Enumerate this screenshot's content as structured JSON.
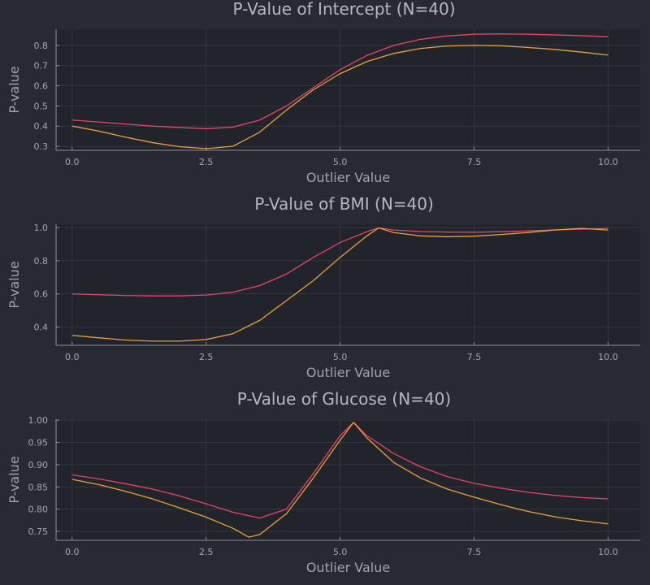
{
  "chart_data": [
    {
      "type": "line",
      "title": "P-Value of Intercept (N=40)",
      "xlabel": "Outlier Value",
      "ylabel": "P-value",
      "xlim": [
        -0.3,
        10.6
      ],
      "ylim": [
        0.28,
        0.88
      ],
      "xticks": [
        0,
        2.5,
        5,
        7.5,
        10
      ],
      "xtick_labels": [
        "0.0",
        "2.5",
        "5.0",
        "7.5",
        "10.0"
      ],
      "yticks": [
        0.3,
        0.4,
        0.5,
        0.6,
        0.7,
        0.8
      ],
      "ytick_labels": [
        "0.3",
        "0.4",
        "0.5",
        "0.6",
        "0.7",
        "0.8"
      ],
      "grid": true,
      "series": [
        {
          "color": "#e8436b",
          "x": [
            0,
            0.5,
            1,
            1.5,
            2,
            2.5,
            3,
            3.5,
            4,
            4.5,
            5,
            5.5,
            6,
            6.5,
            7,
            7.5,
            8,
            8.5,
            9,
            9.5,
            10
          ],
          "y": [
            0.43,
            0.42,
            0.41,
            0.4,
            0.393,
            0.387,
            0.395,
            0.43,
            0.5,
            0.59,
            0.68,
            0.75,
            0.8,
            0.83,
            0.847,
            0.855,
            0.857,
            0.855,
            0.852,
            0.848,
            0.843
          ]
        },
        {
          "color": "#e9a23b",
          "x": [
            0,
            0.5,
            1,
            1.5,
            2,
            2.5,
            3,
            3.5,
            4,
            4.5,
            5,
            5.5,
            6,
            6.5,
            7,
            7.5,
            8,
            8.5,
            9,
            9.5,
            10
          ],
          "y": [
            0.4,
            0.375,
            0.345,
            0.318,
            0.298,
            0.288,
            0.3,
            0.37,
            0.48,
            0.58,
            0.66,
            0.72,
            0.76,
            0.785,
            0.797,
            0.8,
            0.798,
            0.79,
            0.78,
            0.767,
            0.752
          ]
        }
      ]
    },
    {
      "type": "line",
      "title": "P-Value of BMI (N=40)",
      "xlabel": "Outlier Value",
      "ylabel": "P-value",
      "xlim": [
        -0.3,
        10.6
      ],
      "ylim": [
        0.29,
        1.02
      ],
      "xticks": [
        0,
        2.5,
        5,
        7.5,
        10
      ],
      "xtick_labels": [
        "0.0",
        "2.5",
        "5.0",
        "7.5",
        "10.0"
      ],
      "yticks": [
        0.4,
        0.6,
        0.8,
        1.0
      ],
      "ytick_labels": [
        "0.4",
        "0.6",
        "0.8",
        "1.0"
      ],
      "grid": true,
      "series": [
        {
          "color": "#e8436b",
          "x": [
            0,
            0.5,
            1,
            1.5,
            2,
            2.5,
            3,
            3.5,
            4,
            4.5,
            5,
            5.5,
            5.72,
            6,
            6.5,
            7,
            7.5,
            8,
            8.5,
            9,
            9.5,
            10
          ],
          "y": [
            0.6,
            0.595,
            0.59,
            0.588,
            0.588,
            0.593,
            0.61,
            0.65,
            0.72,
            0.82,
            0.91,
            0.975,
            0.998,
            0.985,
            0.976,
            0.973,
            0.972,
            0.975,
            0.98,
            0.986,
            0.99,
            0.995
          ]
        },
        {
          "color": "#e9a23b",
          "x": [
            0,
            0.5,
            1,
            1.5,
            2,
            2.5,
            3,
            3.5,
            4,
            4.5,
            5,
            5.5,
            5.72,
            6,
            6.5,
            7,
            7.5,
            8,
            8.5,
            9,
            9.5,
            10
          ],
          "y": [
            0.35,
            0.335,
            0.322,
            0.315,
            0.315,
            0.325,
            0.36,
            0.44,
            0.56,
            0.68,
            0.82,
            0.95,
            0.998,
            0.97,
            0.95,
            0.945,
            0.948,
            0.958,
            0.97,
            0.985,
            0.995,
            0.985
          ]
        }
      ]
    },
    {
      "type": "line",
      "title": "P-Value of Glucose (N=40)",
      "xlabel": "Outlier Value",
      "ylabel": "P-value",
      "xlim": [
        -0.3,
        10.6
      ],
      "ylim": [
        0.73,
        1.002
      ],
      "xticks": [
        0,
        2.5,
        5,
        7.5,
        10
      ],
      "xtick_labels": [
        "0.0",
        "2.5",
        "5.0",
        "7.5",
        "10.0"
      ],
      "yticks": [
        0.75,
        0.8,
        0.85,
        0.9,
        0.95,
        1.0
      ],
      "ytick_labels": [
        "0.75",
        "0.80",
        "0.85",
        "0.90",
        "0.95",
        "1.00"
      ],
      "grid": true,
      "series": [
        {
          "color": "#e8436b",
          "x": [
            0,
            0.5,
            1,
            1.5,
            2,
            2.5,
            3,
            3.5,
            4,
            4.5,
            5,
            5.25,
            5.5,
            6,
            6.5,
            7,
            7.5,
            8,
            8.5,
            9,
            9.5,
            10
          ],
          "y": [
            0.877,
            0.868,
            0.857,
            0.845,
            0.83,
            0.812,
            0.793,
            0.78,
            0.8,
            0.88,
            0.965,
            0.995,
            0.965,
            0.925,
            0.895,
            0.873,
            0.858,
            0.847,
            0.838,
            0.831,
            0.826,
            0.823
          ]
        },
        {
          "color": "#e9a23b",
          "x": [
            0,
            0.5,
            1,
            1.5,
            2,
            2.5,
            3,
            3.3,
            3.5,
            4,
            4.5,
            5,
            5.25,
            5.5,
            6,
            6.5,
            7,
            7.5,
            8,
            8.5,
            9,
            9.5,
            10
          ],
          "y": [
            0.867,
            0.855,
            0.84,
            0.823,
            0.803,
            0.782,
            0.757,
            0.737,
            0.743,
            0.79,
            0.87,
            0.955,
            0.995,
            0.96,
            0.905,
            0.87,
            0.845,
            0.827,
            0.81,
            0.795,
            0.783,
            0.774,
            0.767
          ]
        }
      ]
    }
  ]
}
